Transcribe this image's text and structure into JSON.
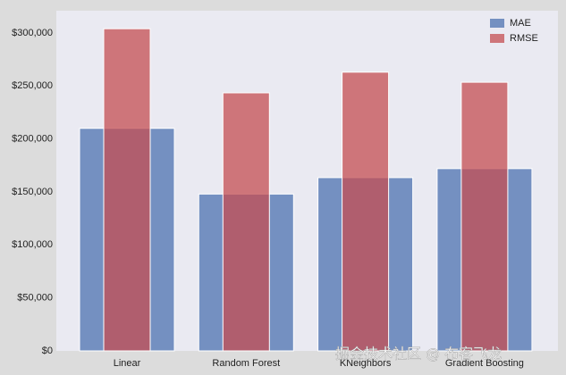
{
  "chart_data": {
    "type": "bar",
    "categories": [
      "Linear",
      "Random Forest",
      "KNeighbors",
      "Gradient Boosting"
    ],
    "series": [
      {
        "name": "MAE",
        "color": "#4c72b0",
        "values": [
          210000,
          148000,
          163500,
          172000
        ]
      },
      {
        "name": "RMSE",
        "color": "#c44e52",
        "values": [
          304000,
          243500,
          263000,
          253500
        ]
      }
    ],
    "ylim": [
      0,
      321000
    ],
    "yticks": [
      {
        "value": 0,
        "label": "$0"
      },
      {
        "value": 50000,
        "label": "$50,000"
      },
      {
        "value": 100000,
        "label": "$100,000"
      },
      {
        "value": 150000,
        "label": "$150,000"
      },
      {
        "value": 200000,
        "label": "$200,000"
      },
      {
        "value": 250000,
        "label": "$250,000"
      },
      {
        "value": 300000,
        "label": "$300,000"
      }
    ],
    "grid": false,
    "legend": "upper right",
    "watermark": "掘金技术社区 @ 布客飞龙"
  }
}
